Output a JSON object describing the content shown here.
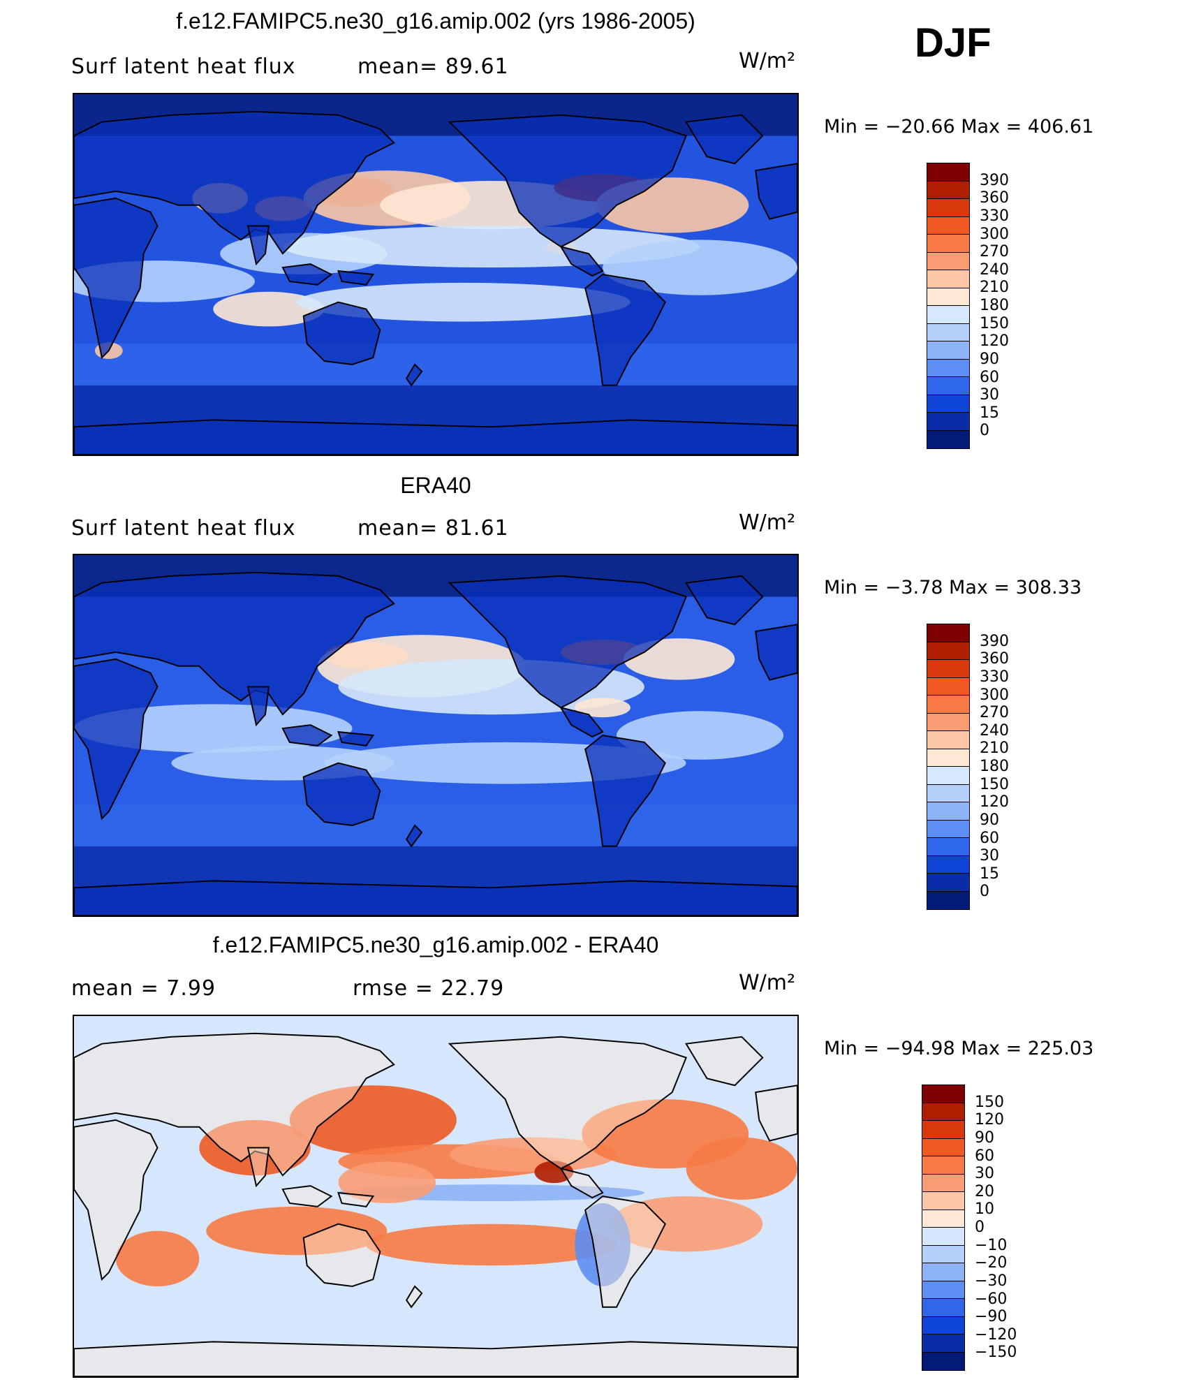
{
  "season": "DJF",
  "units": "W/m²",
  "panels": [
    {
      "title": "f.e12.FAMIPC5.ne30_g16.amip.002 (yrs 1986-2005)",
      "left_label": "Surf  latent  heat  flux",
      "center_label": "mean=   89.61",
      "min_max": "Min  =  −20.66  Max  =  406.61",
      "levels": [
        "390",
        "360",
        "330",
        "300",
        "270",
        "240",
        "210",
        "180",
        "150",
        "120",
        "90",
        "60",
        "30",
        "15",
        "0"
      ],
      "colors": [
        "#7f0000",
        "#b01e00",
        "#d83a0c",
        "#f05a22",
        "#f77a45",
        "#f79c73",
        "#fbc7a6",
        "#fde8d4",
        "#d6e8fb",
        "#b5d1fb",
        "#8db4f8",
        "#5c8ef3",
        "#2f67ea",
        "#0f45d6",
        "#0a2ca8",
        "#041a78"
      ],
      "land": "#0a2fb8",
      "ocean": "#2354e0"
    },
    {
      "title": "ERA40",
      "left_label": "Surf  latent  heat  flux",
      "center_label": "mean=   81.61",
      "min_max": "Min  =    −3.78  Max  =  308.33",
      "levels": [
        "390",
        "360",
        "330",
        "300",
        "270",
        "240",
        "210",
        "180",
        "150",
        "120",
        "90",
        "60",
        "30",
        "15",
        "0"
      ],
      "colors": [
        "#7f0000",
        "#b01e00",
        "#d83a0c",
        "#f05a22",
        "#f77a45",
        "#f79c73",
        "#fbc7a6",
        "#fde8d4",
        "#d6e8fb",
        "#b5d1fb",
        "#8db4f8",
        "#5c8ef3",
        "#2f67ea",
        "#0f45d6",
        "#0a2ca8",
        "#041a78"
      ],
      "land": "#0a2fb8",
      "ocean": "#2a5ee6"
    },
    {
      "title": "f.e12.FAMIPC5.ne30_g16.amip.002 - ERA40",
      "left_label": "mean  =       7.99",
      "center_label": "rmse  =     22.79",
      "min_max": "Min  =  −94.98  Max  =  225.03",
      "levels": [
        "150",
        "120",
        "90",
        "60",
        "30",
        "20",
        "10",
        "0",
        "−10",
        "−20",
        "−30",
        "−60",
        "−90",
        "−120",
        "−150"
      ],
      "colors": [
        "#7f0000",
        "#b01e00",
        "#d83a0c",
        "#f05a22",
        "#f77a45",
        "#fa9c73",
        "#fcc7a8",
        "#fde8d8",
        "#d6e7fb",
        "#b5d0fa",
        "#8db3f6",
        "#5d8ef1",
        "#2f67e8",
        "#0f45d6",
        "#0a2ca8",
        "#041a78"
      ],
      "land": "#fde8d8",
      "ocean": "#d6e7fb"
    }
  ]
}
